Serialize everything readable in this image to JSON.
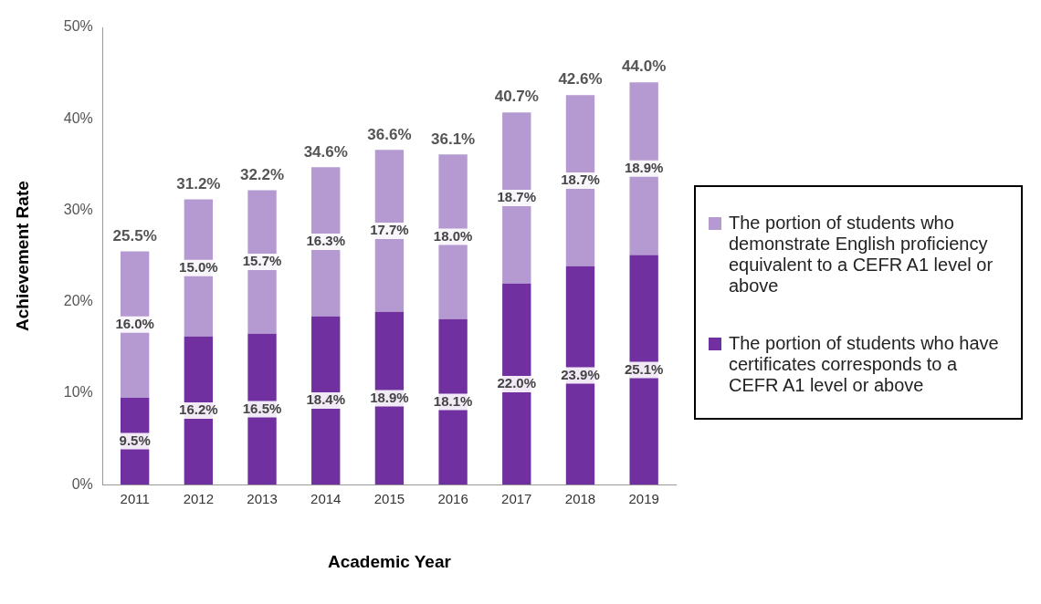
{
  "chart_data": {
    "type": "bar",
    "stacked": true,
    "xlabel": "Academic Year",
    "ylabel": "Achievement Rate",
    "categories": [
      "2011",
      "2012",
      "2013",
      "2014",
      "2015",
      "2016",
      "2017",
      "2018",
      "2019"
    ],
    "series": [
      {
        "name": "The portion of students who have certificates corresponds to a CEFR A1 level or above",
        "color": "#7030a0",
        "values": [
          9.5,
          16.2,
          16.5,
          18.4,
          18.9,
          18.1,
          22.0,
          23.9,
          25.1
        ],
        "value_labels": [
          "9.5%",
          "16.2%",
          "16.5%",
          "18.4%",
          "18.9%",
          "18.1%",
          "22.0%",
          "23.9%",
          "25.1%"
        ]
      },
      {
        "name": "The portion of students who demonstrate English proficiency equivalent to a CEFR A1 level or above",
        "color": "#b49ad0",
        "values": [
          16.0,
          15.0,
          15.7,
          16.3,
          17.7,
          18.0,
          18.7,
          18.7,
          18.9
        ],
        "value_labels": [
          "16.0%",
          "15.0%",
          "15.7%",
          "16.3%",
          "17.7%",
          "18.0%",
          "18.7%",
          "18.7%",
          "18.9%"
        ]
      }
    ],
    "totals": [
      "25.5%",
      "31.2%",
      "32.2%",
      "34.6%",
      "36.6%",
      "36.1%",
      "40.7%",
      "42.6%",
      "44.0%"
    ],
    "ylim": [
      0,
      50
    ],
    "yticks": [
      {
        "value": 0,
        "label": "0%"
      },
      {
        "value": 10,
        "label": "10%"
      },
      {
        "value": 20,
        "label": "20%"
      },
      {
        "value": 30,
        "label": "30%"
      },
      {
        "value": 40,
        "label": "40%"
      },
      {
        "value": 50,
        "label": "50%"
      }
    ],
    "grid": false,
    "legend": "right"
  }
}
